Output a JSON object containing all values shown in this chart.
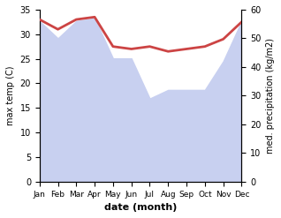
{
  "months": [
    "Jan",
    "Feb",
    "Mar",
    "Apr",
    "May",
    "Jun",
    "Jul",
    "Aug",
    "Sep",
    "Oct",
    "Nov",
    "Dec"
  ],
  "temperature": [
    33.0,
    31.0,
    33.0,
    33.5,
    27.5,
    27.0,
    27.5,
    26.5,
    27.0,
    27.5,
    29.0,
    32.5
  ],
  "precipitation": [
    56,
    50,
    56,
    57,
    43,
    43,
    29,
    32,
    32,
    32,
    42,
    56
  ],
  "temp_color": "#cc4444",
  "precip_fill_color": "#c8d0f0",
  "temp_ylim": [
    0,
    35
  ],
  "precip_ylim": [
    0,
    60
  ],
  "temp_ylabel": "max temp (C)",
  "precip_ylabel": "med. precipitation (kg/m2)",
  "xlabel": "date (month)",
  "temp_yticks": [
    0,
    5,
    10,
    15,
    20,
    25,
    30,
    35
  ],
  "precip_yticks": [
    0,
    10,
    20,
    30,
    40,
    50,
    60
  ],
  "bg_color": "#ffffff",
  "line_width": 2.0,
  "xlabel_fontsize": 8,
  "ylabel_fontsize": 7,
  "tick_fontsize": 7,
  "xtick_fontsize": 6.5
}
